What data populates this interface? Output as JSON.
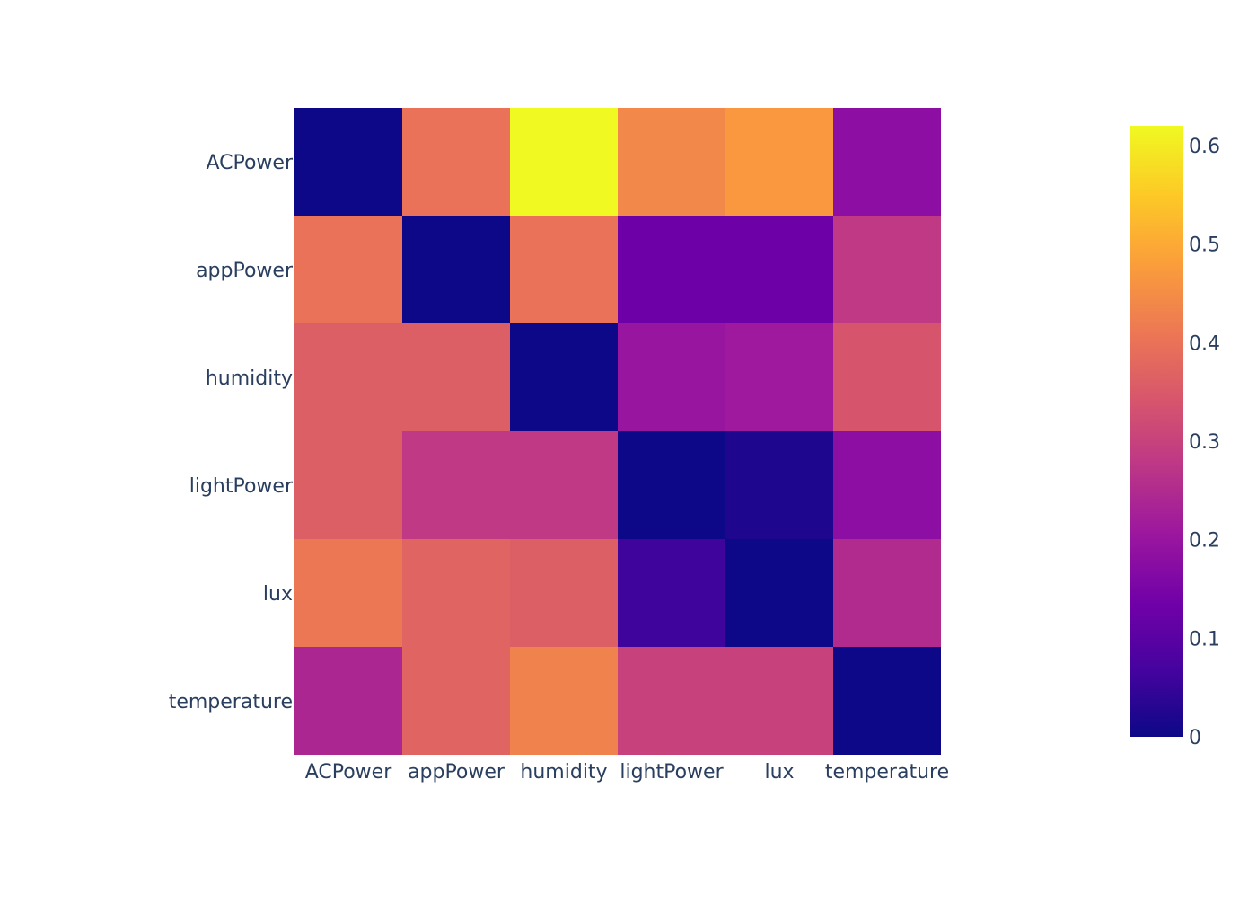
{
  "chart_data": {
    "type": "heatmap",
    "title": "",
    "xlabel": "",
    "ylabel": "",
    "x": [
      "ACPower",
      "appPower",
      "humidity",
      "lightPower",
      "lux",
      "temperature"
    ],
    "y": [
      "ACPower",
      "appPower",
      "humidity",
      "lightPower",
      "lux",
      "temperature"
    ],
    "z": [
      [
        0.0,
        0.4,
        0.62,
        0.44,
        0.47,
        0.18
      ],
      [
        0.4,
        0.0,
        0.4,
        0.13,
        0.13,
        0.28
      ],
      [
        0.36,
        0.36,
        0.0,
        0.2,
        0.21,
        0.34
      ],
      [
        0.36,
        0.28,
        0.28,
        0.0,
        0.02,
        0.18
      ],
      [
        0.41,
        0.37,
        0.36,
        0.06,
        0.0,
        0.25
      ],
      [
        0.24,
        0.37,
        0.43,
        0.3,
        0.3,
        0.0
      ]
    ],
    "zmin": 0,
    "zmax": 0.62,
    "colorscale": "Plasma",
    "colorbar": {
      "ticks": [
        0,
        0.1,
        0.2,
        0.3,
        0.4,
        0.5,
        0.6
      ],
      "tick_labels": [
        "0",
        "0.1",
        "0.2",
        "0.3",
        "0.4",
        "0.5",
        "0.6"
      ],
      "placement": "right"
    }
  },
  "colors": {
    "font": "#2a3f5f",
    "background": "#ffffff",
    "plasma": [
      "#0d0887",
      "#46039f",
      "#7201a8",
      "#9c179e",
      "#bd3786",
      "#d8576b",
      "#ed7953",
      "#fb9f3a",
      "#fdca26",
      "#f0f921"
    ]
  }
}
